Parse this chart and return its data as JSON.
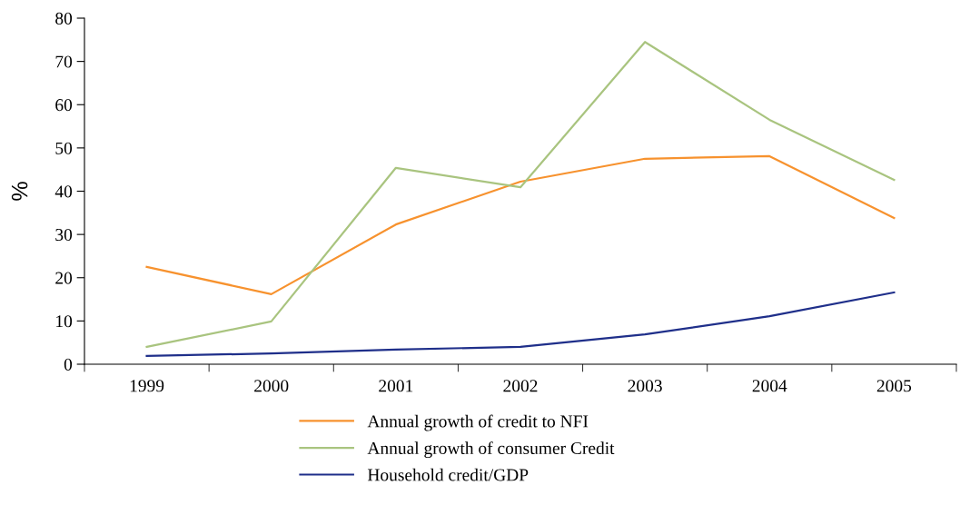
{
  "chart_data": {
    "type": "line",
    "ylabel": "%",
    "categories": [
      "1999",
      "2000",
      "2001",
      "2002",
      "2003",
      "2004",
      "2005"
    ],
    "series": [
      {
        "name": "Annual growth of credit to NFI",
        "color": "#f7922e",
        "values": [
          22.5,
          16.2,
          32.3,
          42.2,
          47.5,
          48.1,
          33.8
        ]
      },
      {
        "name": "Annual growth of consumer Credit",
        "color": "#a9c47f",
        "values": [
          4.0,
          9.9,
          45.4,
          40.9,
          74.5,
          56.5,
          42.6
        ]
      },
      {
        "name": "Household credit/GDP",
        "color": "#1f2f8a",
        "values": [
          1.9,
          2.5,
          3.4,
          4.0,
          6.9,
          11.1,
          16.6
        ]
      }
    ],
    "ylim": [
      0,
      80
    ],
    "yticks": [
      0,
      10,
      20,
      30,
      40,
      50,
      60,
      70,
      80
    ],
    "grid": false,
    "legend": "bottom",
    "marker": "none",
    "line_style": "solid"
  }
}
